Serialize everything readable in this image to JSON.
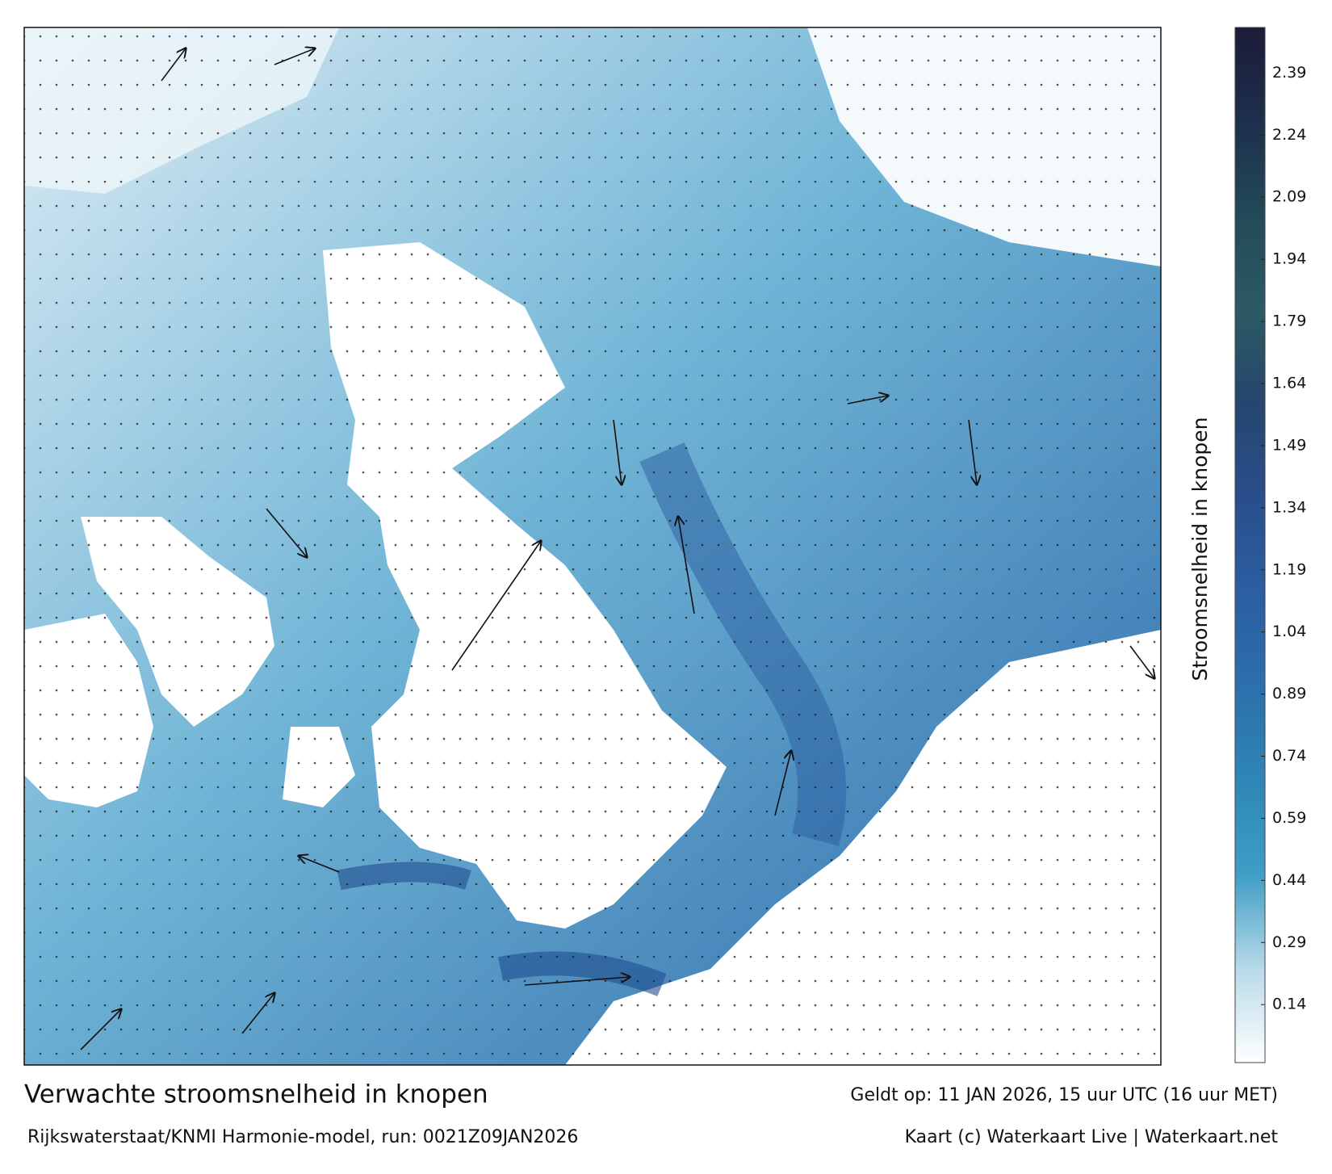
{
  "footer": {
    "title": "Verwachte stroomsnelheid in knopen",
    "valid": "Geldt op: 11 JAN 2026, 15 uur UTC (16 uur MET)",
    "model": "Rijkswaterstaat/KNMI Harmonie-model, run: 0021Z09JAN2026",
    "credits": "Kaart (c) Waterkaart Live | Waterkaart.net"
  },
  "colorbar": {
    "label": "Stroomsnelheid in knopen",
    "lim": [
      0,
      2.5
    ],
    "ticks": [
      0.14,
      0.29,
      0.44,
      0.59,
      0.74,
      0.89,
      1.04,
      1.19,
      1.34,
      1.49,
      1.64,
      1.79,
      1.94,
      2.09,
      2.24,
      2.39
    ],
    "colors": [
      "#ffffff",
      "#b8d9e8",
      "#3e9ec6",
      "#2e86b6",
      "#2c6fac",
      "#2b5ea2",
      "#2a4e8c",
      "#26466f",
      "#2c5a62",
      "#234a58",
      "#1d2f4c",
      "#1c1c38"
    ]
  }
}
